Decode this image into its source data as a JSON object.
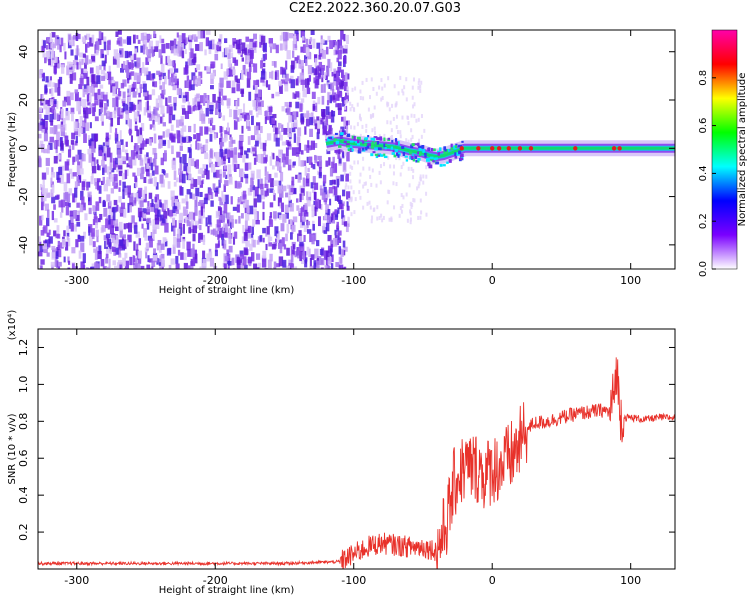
{
  "title": "C2E2.2022.360.20.07.G03",
  "colors": {
    "snr_line": "#e8312a",
    "scatter_purple": "#7a2ee6",
    "scatter_light": "#c9a7f5",
    "track_band": "#8e4cf0",
    "track_core": "#12d970",
    "track_peak": "#e21c1c"
  },
  "chart_data": [
    {
      "type": "heatmap",
      "panel": "spectrogram",
      "xlabel": "Height of straight line (km)",
      "ylabel": "Frequency (Hz)",
      "xlim": [
        -328,
        132
      ],
      "ylim": [
        -50,
        49
      ],
      "xticks": [
        -300,
        -200,
        -100,
        0,
        100
      ],
      "xtick_labels": [
        "-300",
        "-200",
        "-100",
        "0",
        "100"
      ],
      "yticks": [
        -40,
        -20,
        0,
        20,
        40
      ],
      "ytick_labels": [
        "-40",
        "-20",
        "0",
        "20",
        "40"
      ],
      "colorbar": {
        "label": "Normalized spectral amplitude",
        "range": [
          0.0,
          1.0
        ],
        "ticks": [
          0.0,
          0.2,
          0.4,
          0.6,
          0.8
        ],
        "tick_labels": [
          "0.0",
          "0.2",
          "0.4",
          "0.6",
          "0.8"
        ],
        "colormap": [
          "#ffffff",
          "#7a00ff",
          "#0000ff",
          "#00ffff",
          "#00ff00",
          "#ffff00",
          "#ff0000",
          "#ff00aa"
        ]
      },
      "noise_region": {
        "x_range": [
          -328,
          -105
        ],
        "y_range": [
          -50,
          49
        ],
        "amplitude": 0.15
      },
      "signal_track": {
        "x": [
          -120,
          -110,
          -100,
          -90,
          -80,
          -70,
          -60,
          -50,
          -45,
          -40,
          -35,
          -30,
          -25,
          -20,
          -10,
          0,
          20,
          40,
          60,
          80,
          90,
          100,
          132
        ],
        "y": [
          2,
          3,
          2,
          1.5,
          1,
          0.5,
          -1,
          -2,
          -3,
          -3.5,
          -3,
          -2,
          -1,
          0,
          0,
          0,
          0,
          0,
          0,
          0,
          0,
          0,
          0
        ],
        "amplitude": [
          0.45,
          0.5,
          0.5,
          0.5,
          0.5,
          0.55,
          0.55,
          0.6,
          0.6,
          0.6,
          0.6,
          0.65,
          0.7,
          0.8,
          0.85,
          0.9,
          0.8,
          0.75,
          0.75,
          0.8,
          0.95,
          0.85,
          0.8
        ]
      }
    },
    {
      "type": "line",
      "panel": "snr",
      "xlabel": "Height of straight line (km)",
      "ylabel": "SNR (10 * v/v)",
      "y_multiplier": "(x10⁴)",
      "xlim": [
        -328,
        132
      ],
      "ylim": [
        0,
        1.3
      ],
      "xticks": [
        -300,
        -200,
        -100,
        0,
        100
      ],
      "xtick_labels": [
        "-300",
        "-200",
        "-100",
        "0",
        "100"
      ],
      "yticks": [
        0.2,
        0.4,
        0.6,
        0.8,
        1.0,
        1.2
      ],
      "ytick_labels": [
        "0.2",
        "0.4",
        "0.6",
        "0.8",
        "1.0",
        "1.2"
      ],
      "series": [
        {
          "x": [
            -328,
            -250,
            -200,
            -150,
            -110,
            -100,
            -90,
            -80,
            -70,
            -60,
            -50,
            -40,
            -35,
            -30,
            -28,
            -25,
            -20,
            -15,
            -10,
            -5,
            0,
            5,
            10,
            15,
            20,
            25,
            30,
            40,
            50,
            60,
            70,
            80,
            85,
            88,
            90,
            92,
            95,
            100,
            110,
            120,
            132
          ],
          "y": [
            0.03,
            0.03,
            0.03,
            0.03,
            0.04,
            0.08,
            0.12,
            0.14,
            0.13,
            0.12,
            0.12,
            0.1,
            0.2,
            0.35,
            0.45,
            0.5,
            0.55,
            0.55,
            0.55,
            0.5,
            0.55,
            0.55,
            0.58,
            0.62,
            0.68,
            0.75,
            0.79,
            0.8,
            0.82,
            0.84,
            0.85,
            0.86,
            0.85,
            0.95,
            1.1,
            0.85,
            0.82,
            0.82,
            0.81,
            0.82,
            0.82
          ]
        }
      ]
    }
  ]
}
